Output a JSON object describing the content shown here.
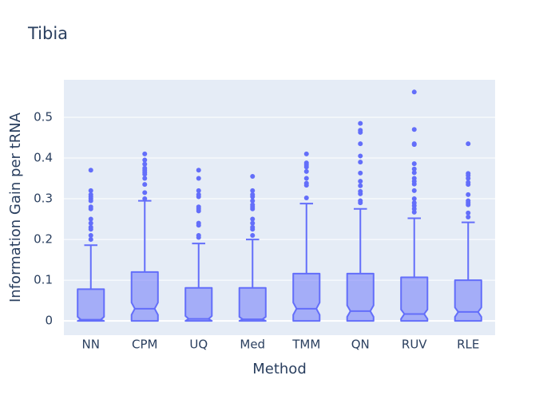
{
  "chart_data": {
    "type": "box",
    "title": "Tibia",
    "x_label": "Method",
    "y_label": "Information Gain per tRNA",
    "categories": [
      "NN",
      "CPM",
      "UQ",
      "Med",
      "TMM",
      "QN",
      "RUV",
      "RLE"
    ],
    "color": "#636efa",
    "grid": true,
    "ylim": [
      -0.035,
      0.592
    ],
    "yticks": [
      0,
      0.1,
      0.2,
      0.3,
      0.4,
      0.5
    ],
    "lowerfence": [
      0,
      0,
      0,
      0,
      0,
      0,
      0,
      0
    ],
    "q1": [
      0,
      0,
      0,
      0,
      0,
      0,
      0,
      0
    ],
    "notch_low": [
      0,
      0.015,
      0,
      0,
      0.015,
      0.01,
      0.005,
      0.01
    ],
    "median": [
      0.003,
      0.03,
      0.005,
      0.004,
      0.03,
      0.024,
      0.017,
      0.022
    ],
    "notch_high": [
      0.01,
      0.045,
      0.012,
      0.01,
      0.045,
      0.038,
      0.028,
      0.033
    ],
    "q3": [
      0.078,
      0.12,
      0.081,
      0.081,
      0.116,
      0.116,
      0.107,
      0.1
    ],
    "upperfence": [
      0.186,
      0.295,
      0.19,
      0.2,
      0.288,
      0.275,
      0.252,
      0.242
    ],
    "outliers": [
      [
        0.37,
        0.32,
        0.31,
        0.305,
        0.3,
        0.295,
        0.28,
        0.275,
        0.25,
        0.24,
        0.23,
        0.225,
        0.21,
        0.2
      ],
      [
        0.41,
        0.395,
        0.385,
        0.375,
        0.37,
        0.365,
        0.36,
        0.35,
        0.335,
        0.315,
        0.3
      ],
      [
        0.37,
        0.35,
        0.32,
        0.31,
        0.305,
        0.28,
        0.275,
        0.27,
        0.24,
        0.235,
        0.21,
        0.205
      ],
      [
        0.355,
        0.32,
        0.31,
        0.305,
        0.295,
        0.285,
        0.28,
        0.275,
        0.25,
        0.24,
        0.23,
        0.225,
        0.21
      ],
      [
        0.41,
        0.388,
        0.383,
        0.378,
        0.367,
        0.35,
        0.338,
        0.333,
        0.302
      ],
      [
        0.485,
        0.468,
        0.463,
        0.435,
        0.405,
        0.39,
        0.363,
        0.343,
        0.332,
        0.318,
        0.312,
        0.295,
        0.29
      ],
      [
        0.562,
        0.47,
        0.435,
        0.433,
        0.386,
        0.373,
        0.364,
        0.35,
        0.343,
        0.336,
        0.32,
        0.3,
        0.29,
        0.283,
        0.275,
        0.267
      ],
      [
        0.435,
        0.362,
        0.357,
        0.35,
        0.34,
        0.335,
        0.31,
        0.295,
        0.29,
        0.285,
        0.265,
        0.255
      ]
    ]
  }
}
